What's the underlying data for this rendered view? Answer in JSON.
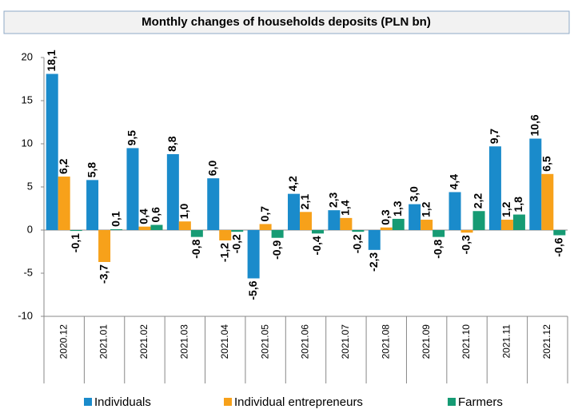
{
  "chart_data": {
    "type": "bar",
    "title": "Monthly changes of households deposits (PLN bn)",
    "categories": [
      "2020.12",
      "2021.01",
      "2021.02",
      "2021.03",
      "2021.04",
      "2021.05",
      "2021.06",
      "2021.07",
      "2021.08",
      "2021.09",
      "2021.10",
      "2021.11",
      "2021.12"
    ],
    "series": [
      {
        "name": "Individuals",
        "color": "#1a8bcb",
        "values": [
          18.1,
          5.8,
          9.5,
          8.8,
          6.0,
          -5.6,
          4.2,
          2.3,
          -2.3,
          3.0,
          4.4,
          9.7,
          10.6
        ],
        "value_labels": [
          "18,1",
          "5,8",
          "9,5",
          "8,8",
          "6,0",
          "-5,6",
          "4,2",
          "2,3",
          "-2,3",
          "3,0",
          "4,4",
          "9,7",
          "10,6"
        ]
      },
      {
        "name": "Individual entrepreneurs",
        "color": "#f7a11a",
        "values": [
          6.2,
          -3.7,
          0.4,
          1.0,
          -1.2,
          0.7,
          2.1,
          1.4,
          0.3,
          1.2,
          -0.3,
          1.2,
          6.5
        ],
        "value_labels": [
          "6,2",
          "-3,7",
          "0,4",
          "1,0",
          "-1,2",
          "0,7",
          "2,1",
          "1,4",
          "0,3",
          "1,2",
          "-0,3",
          "1,2",
          "6,5"
        ]
      },
      {
        "name": "Farmers",
        "color": "#169b74",
        "values": [
          -0.1,
          0.1,
          0.6,
          -0.8,
          -0.2,
          -0.9,
          -0.4,
          -0.2,
          1.3,
          -0.8,
          2.2,
          1.8,
          -0.6
        ],
        "value_labels": [
          "-0,1",
          "0,1",
          "0,6",
          "-0,8",
          "-0,2",
          "-0,9",
          "-0,4",
          "-0,2",
          "1,3",
          "-0,8",
          "2,2",
          "1,8",
          "-0,6"
        ]
      }
    ],
    "ylim": [
      -10,
      20
    ],
    "yticks": [
      -10,
      -5,
      0,
      5,
      10,
      15,
      20
    ],
    "grid": false,
    "legend": "bottom"
  }
}
